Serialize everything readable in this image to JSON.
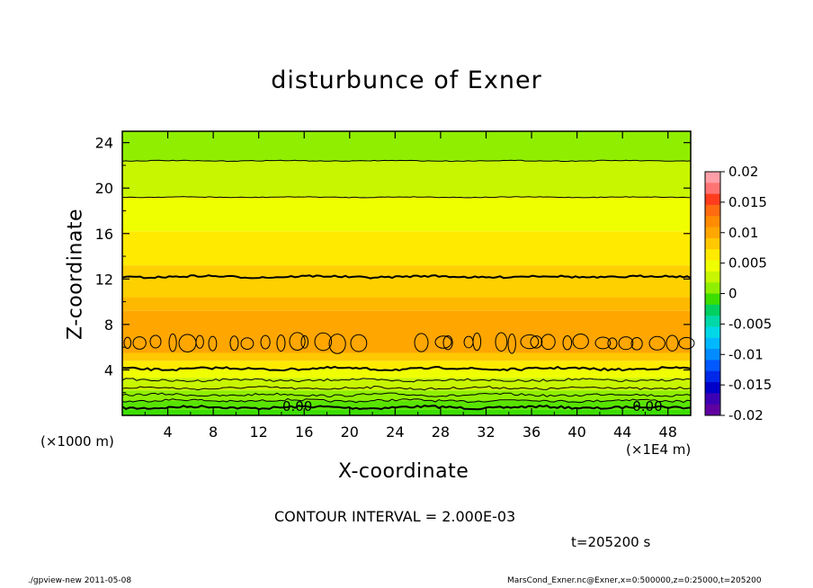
{
  "chart_data": {
    "type": "contour",
    "title": "disturbunce of Exner",
    "xlabel": "X-coordinate",
    "ylabel": "Z-coordinate",
    "x_unit_label": "(×1E4 m)",
    "z_unit_label": "(×1000 m)",
    "xlim": [
      0,
      50
    ],
    "ylim": [
      0,
      25
    ],
    "x_ticks": [
      4,
      8,
      12,
      16,
      20,
      24,
      28,
      32,
      36,
      40,
      44,
      48
    ],
    "y_ticks": [
      4,
      8,
      12,
      16,
      20,
      24
    ],
    "contour_interval_text": "CONTOUR INTERVAL = 2.000E-03",
    "colorbar": {
      "labels": [
        "0.02",
        "0.015",
        "0.01",
        "0.005",
        "0",
        "-0.005",
        "-0.01",
        "-0.015",
        "-0.02"
      ],
      "values": [
        0.02,
        0.015,
        0.01,
        0.005,
        0,
        -0.005,
        -0.01,
        -0.015,
        -0.02
      ],
      "colors_top_to_bottom": [
        "#ff9fa8",
        "#ff7474",
        "#ff3d1e",
        "#ff6b10",
        "#ff8c00",
        "#ffa600",
        "#ffc800",
        "#ffea00",
        "#f0ff00",
        "#c8f500",
        "#90ef00",
        "#3cde00",
        "#00d060",
        "#00d8a8",
        "#00d8e8",
        "#00b8ff",
        "#008cff",
        "#0058ff",
        "#0028e8",
        "#0000c8",
        "#3c00b4",
        "#6000a0"
      ]
    },
    "vertical_bands": [
      {
        "z_bottom": 0.0,
        "z_top": 0.5,
        "color": "#3cde00"
      },
      {
        "z_bottom": 0.5,
        "z_top": 1.3,
        "color": "#58e400"
      },
      {
        "z_bottom": 1.3,
        "z_top": 2.2,
        "color": "#90ef00"
      },
      {
        "z_bottom": 2.2,
        "z_top": 3.3,
        "color": "#c8f500"
      },
      {
        "z_bottom": 3.3,
        "z_top": 4.1,
        "color": "#f0ff00"
      },
      {
        "z_bottom": 4.1,
        "z_top": 4.8,
        "color": "#ffea00"
      },
      {
        "z_bottom": 4.8,
        "z_top": 5.5,
        "color": "#ffc800"
      },
      {
        "z_bottom": 5.5,
        "z_top": 9.2,
        "color": "#ffa600"
      },
      {
        "z_bottom": 9.2,
        "z_top": 10.4,
        "color": "#ffb800"
      },
      {
        "z_bottom": 10.4,
        "z_top": 13.2,
        "color": "#ffd000"
      },
      {
        "z_bottom": 13.2,
        "z_top": 16.2,
        "color": "#ffea00"
      },
      {
        "z_bottom": 16.2,
        "z_top": 19.2,
        "color": "#f0ff00"
      },
      {
        "z_bottom": 19.2,
        "z_top": 22.4,
        "color": "#c8f500"
      },
      {
        "z_bottom": 22.4,
        "z_top": 25.0,
        "color": "#90ef00"
      }
    ],
    "contour_levels_z": [
      0.7,
      1.3,
      1.8,
      2.4,
      3.1,
      4.1,
      12.2,
      19.2,
      22.4
    ],
    "closed_contour_row_z": 6.4,
    "zero_label": "0.00",
    "zero_label_positions_x": [
      15.4,
      46.2
    ],
    "zero_label_z": 0.8
  },
  "time_text": "t=205200 s",
  "footer_left": "./gpview-new   2011-05-08",
  "footer_right": "MarsCond_Exner.nc@Exner,x=0:500000,z=0:25000,t=205200"
}
